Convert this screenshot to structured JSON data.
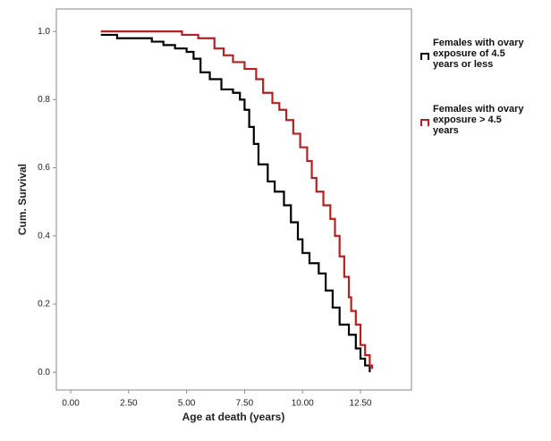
{
  "chart_data": {
    "type": "line",
    "step": true,
    "xlabel": "Age at death (years)",
    "ylabel": "Cum. Survival",
    "xlim": [
      -0.62,
      14.7
    ],
    "ylim": [
      -0.052,
      1.066
    ],
    "xticks": [
      {
        "value": 0,
        "label": "0.00"
      },
      {
        "value": 2.5,
        "label": "2.50"
      },
      {
        "value": 5,
        "label": "5.00"
      },
      {
        "value": 7.5,
        "label": "7.50"
      },
      {
        "value": 10,
        "label": "10.00"
      },
      {
        "value": 12.5,
        "label": "12.50"
      }
    ],
    "yticks": [
      {
        "value": 0,
        "label": "0.0"
      },
      {
        "value": 0.2,
        "label": "0.2"
      },
      {
        "value": 0.4,
        "label": "0.4"
      },
      {
        "value": 0.6,
        "label": "0.6"
      },
      {
        "value": 0.8,
        "label": "0.8"
      },
      {
        "value": 1,
        "label": "1.0"
      }
    ],
    "series": [
      {
        "name": "Females with ovary exposure of 4.5 years or less",
        "color": "#000000",
        "x": [
          1.3,
          2.0,
          3.5,
          4.0,
          4.5,
          5.0,
          5.3,
          5.6,
          6.0,
          6.5,
          7.0,
          7.3,
          7.5,
          7.7,
          7.9,
          8.1,
          8.5,
          8.8,
          9.2,
          9.5,
          9.8,
          10.0,
          10.3,
          10.7,
          11.0,
          11.3,
          11.6,
          12.0,
          12.3,
          12.5,
          12.7,
          12.9
        ],
        "values": [
          0.99,
          0.98,
          0.97,
          0.96,
          0.95,
          0.94,
          0.92,
          0.88,
          0.86,
          0.83,
          0.82,
          0.8,
          0.77,
          0.72,
          0.67,
          0.61,
          0.56,
          0.53,
          0.49,
          0.44,
          0.39,
          0.35,
          0.32,
          0.29,
          0.24,
          0.19,
          0.14,
          0.11,
          0.07,
          0.04,
          0.02,
          0.0
        ]
      },
      {
        "name": "Females with ovary exposure > 4.5 years",
        "color": "#b22222",
        "x": [
          1.3,
          4.8,
          5.5,
          6.2,
          6.6,
          7.0,
          7.5,
          8.0,
          8.3,
          8.7,
          9.0,
          9.3,
          9.6,
          9.9,
          10.2,
          10.4,
          10.6,
          10.9,
          11.2,
          11.4,
          11.6,
          11.8,
          12.0,
          12.1,
          12.3,
          12.5,
          12.7,
          12.9,
          13.0
        ],
        "values": [
          1.0,
          0.99,
          0.98,
          0.95,
          0.93,
          0.91,
          0.89,
          0.86,
          0.82,
          0.79,
          0.77,
          0.74,
          0.7,
          0.66,
          0.62,
          0.57,
          0.53,
          0.49,
          0.45,
          0.4,
          0.34,
          0.28,
          0.22,
          0.18,
          0.14,
          0.08,
          0.05,
          0.02,
          0.01
        ]
      }
    ]
  }
}
